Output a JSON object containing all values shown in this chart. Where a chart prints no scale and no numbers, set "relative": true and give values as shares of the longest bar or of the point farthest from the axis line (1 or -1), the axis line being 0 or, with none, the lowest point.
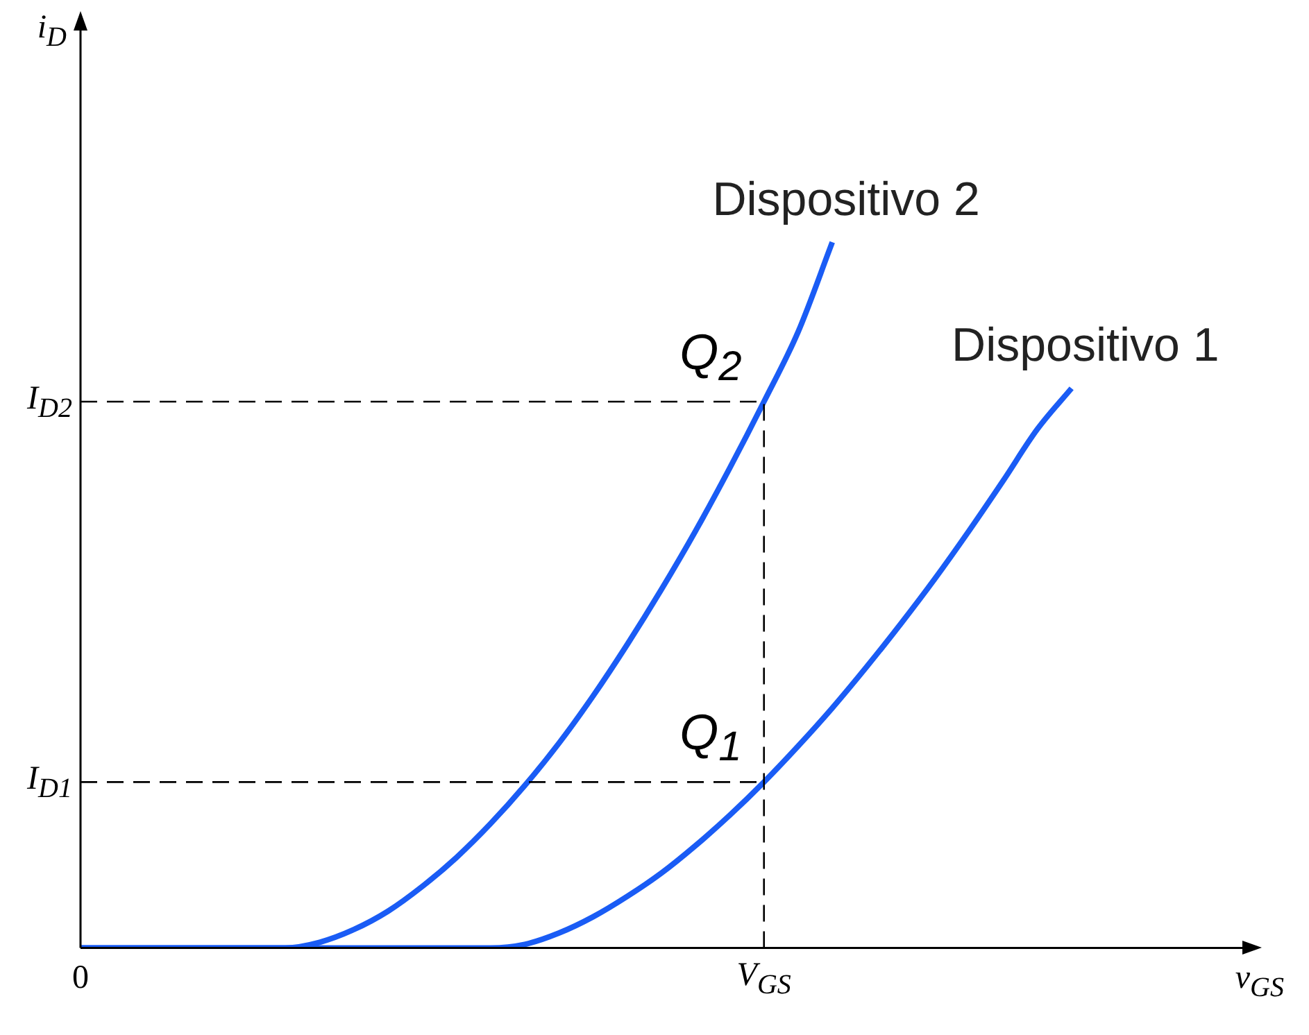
{
  "chart_data": {
    "type": "line",
    "relative": true,
    "xlabel": "v$_{GS}$",
    "categories": [
      "0",
      null,
      null,
      null,
      null,
      null,
      null,
      null,
      null,
      null,
      null,
      null,
      null,
      null,
      null,
      null,
      null,
      null,
      null,
      null,
      "V$_{GS}$",
      null,
      null,
      null,
      null,
      null,
      null,
      null,
      null,
      null,
      null,
      null,
      null,
      null,
      null
    ],
    "series": [
      {
        "name": "Dispositivo 2",
        "color": "#1a5cf5",
        "values": [
          0,
          0,
          0,
          0,
          0,
          0,
          0,
          0.008,
          0.026,
          0.052,
          0.087,
          0.128,
          0.176,
          0.23,
          0.29,
          0.357,
          0.43,
          0.508,
          0.591,
          0.68,
          0.774,
          0.873,
          1.0,
          null,
          null,
          null,
          null,
          null,
          null,
          null,
          null,
          null,
          null,
          null,
          null
        ]
      },
      {
        "name": "Dispositivo 1",
        "color": "#1a5cf5",
        "values": [
          0,
          0,
          0,
          0,
          0,
          0,
          0,
          0,
          0,
          0,
          0,
          0,
          0,
          0.005,
          0.021,
          0.044,
          0.073,
          0.106,
          0.145,
          0.188,
          0.235,
          0.286,
          0.34,
          0.398,
          0.459,
          0.523,
          0.591,
          0.662,
          0.735,
          0.793,
          null,
          null,
          null,
          null,
          null
        ]
      }
    ],
    "ref_lines": [
      {
        "axis": "y",
        "value": 0.774,
        "label": "I$_{D2}$",
        "color": "#000000",
        "line_style": "dashed"
      },
      {
        "axis": "y",
        "value": 0.235,
        "label": "I$_{D1}$",
        "color": "#000000",
        "line_style": "dashed"
      },
      {
        "axis": "x",
        "value": "V$_{GS}$",
        "color": "#000000",
        "line_style": "dashed"
      }
    ],
    "annotations": [
      "i$_{D}$",
      {
        "text": "Q$_{2}$",
        "x": "V$_{GS}$",
        "y": 0.774
      },
      {
        "text": "Q$_{1}$",
        "x": "V$_{GS}$",
        "y": 0.235
      }
    ],
    "grid": false,
    "legend": false,
    "marker": "none",
    "line_style": "solid"
  }
}
